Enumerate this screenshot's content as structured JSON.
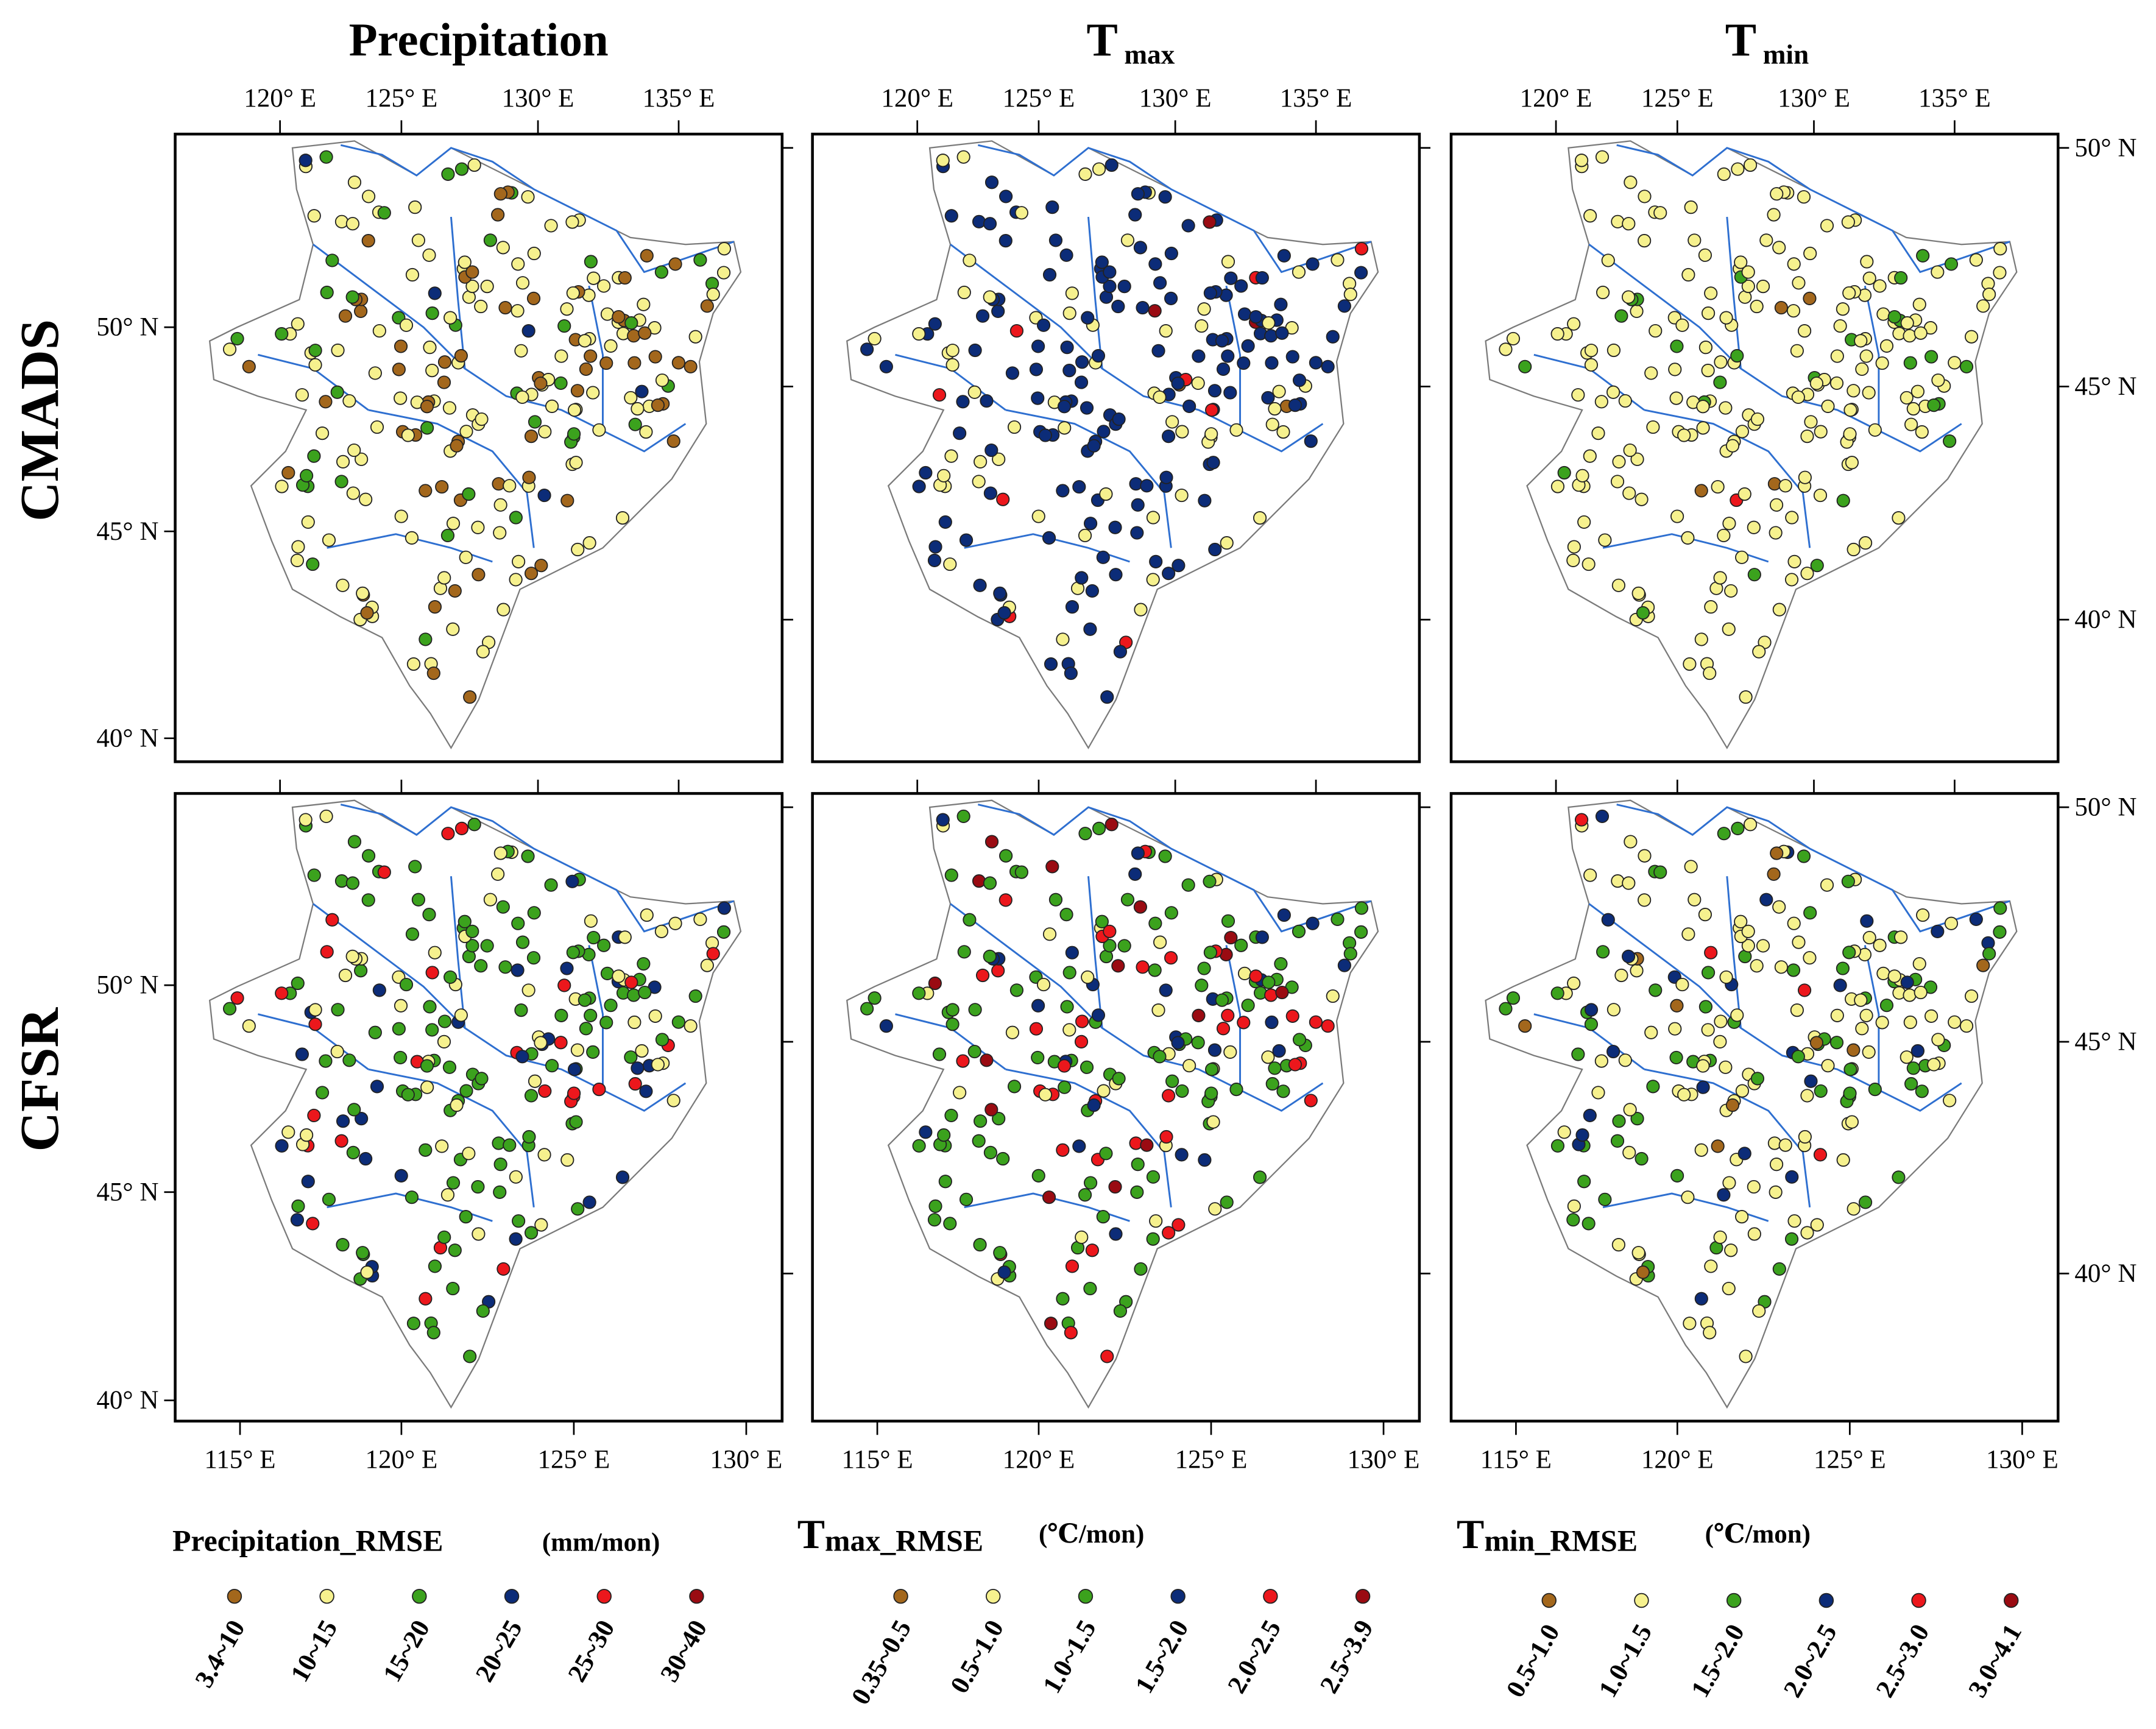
{
  "columns": [
    {
      "title": "Precipitation",
      "sub": ""
    },
    {
      "title": "T",
      "sub": "max"
    },
    {
      "title": "T",
      "sub": "min"
    }
  ],
  "rows": [
    "CMADS",
    "CFSR"
  ],
  "ticks": {
    "top_lon": [
      "120° E",
      "125° E",
      "130° E",
      "135° E"
    ],
    "bottom_lon": [
      "115° E",
      "120° E",
      "125° E",
      "130° E"
    ],
    "lat": [
      "50° N",
      "45° N",
      "40° N"
    ]
  },
  "colors": {
    "c1": "#a3671c",
    "c2": "#f6f18e",
    "c3": "#3ba21d",
    "c4": "#0c2c78",
    "c5": "#ec171c",
    "c6": "#9a0b12",
    "outline": "#7a7a7a",
    "river": "#2e6fd0"
  },
  "legends": [
    {
      "title": "Precipitation_RMSE",
      "sub": "",
      "unit": "(mm/mon)",
      "labels": [
        "3.4~10",
        "10~15",
        "15~20",
        "20~25",
        "25~30",
        "30~40"
      ]
    },
    {
      "title": "T",
      "sub": "max_RMSE",
      "unit": "(℃/mon)",
      "labels": [
        "0.35~0.5",
        "0.5~1.0",
        "1.0~1.5",
        "1.5~2.0",
        "2.0~2.5",
        "2.5~3.9"
      ]
    },
    {
      "title": "T",
      "sub": "min_RMSE",
      "unit": "(℃/mon)",
      "labels": [
        "0.5~1.0",
        "1.0~1.5",
        "1.5~2.0",
        "2.0~2.5",
        "2.5~3.0",
        "3.0~4.1"
      ]
    }
  ],
  "station_class_weights": [
    [
      [
        0.38,
        0.34,
        0.16,
        0.07,
        0.04,
        0.01
      ],
      [
        0.02,
        0.5,
        0.08,
        0.88,
        0.05,
        0.02
      ],
      [
        0.02,
        0.82,
        0.15,
        0.01,
        0.01,
        0
      ]
    ],
    [
      [
        0.01,
        0.45,
        0.33,
        0.1,
        0.11,
        0
      ],
      [
        0,
        0.05,
        0.4,
        0.3,
        0.2,
        0.05
      ],
      [
        0.05,
        0.45,
        0.22,
        0.12,
        0.13,
        0.03
      ]
    ]
  ]
}
